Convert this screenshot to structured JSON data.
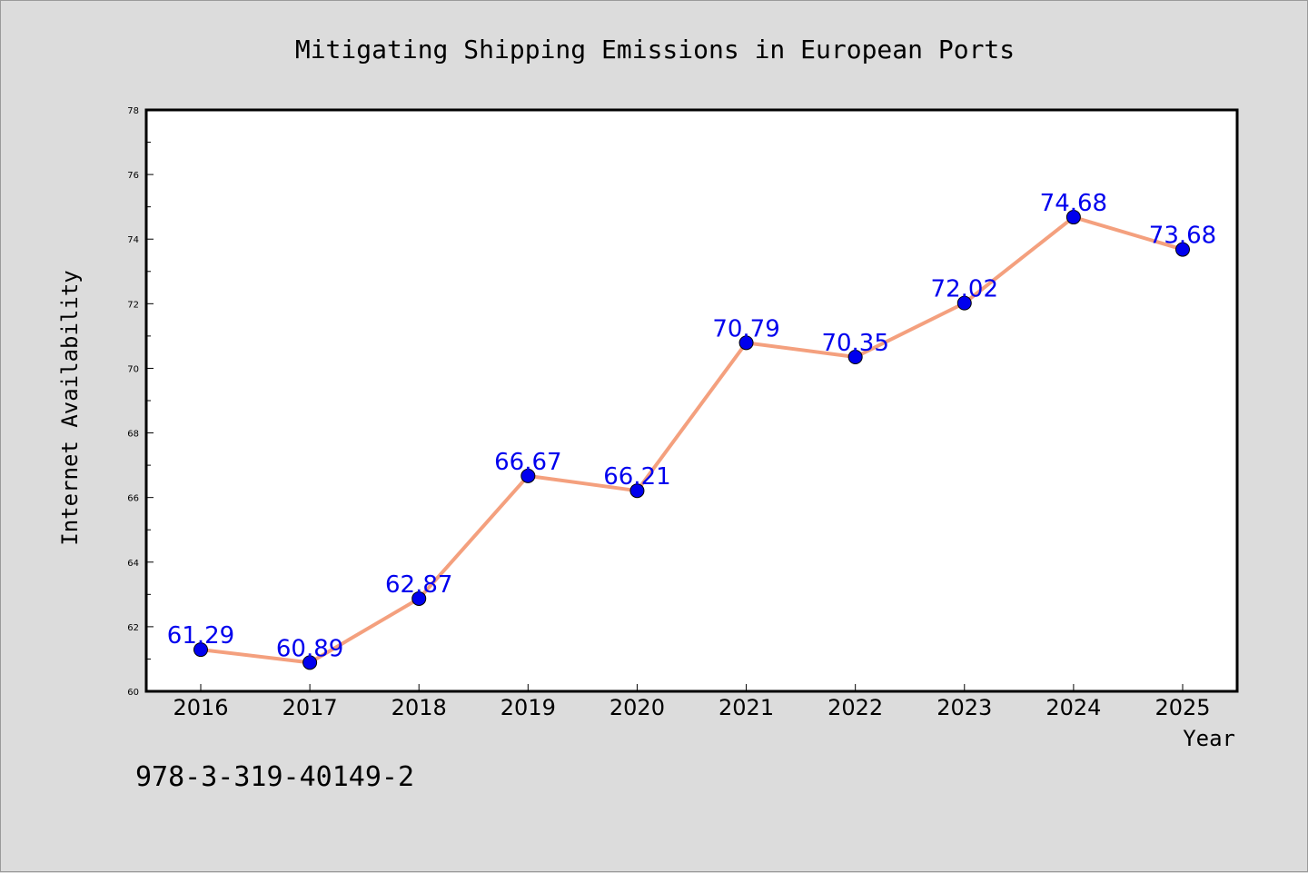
{
  "chart_data": {
    "type": "line",
    "title": "Mitigating Shipping Emissions in European Ports",
    "xlabel": "Year",
    "ylabel": "Internet Availability",
    "categories": [
      "2016",
      "2017",
      "2018",
      "2019",
      "2020",
      "2021",
      "2022",
      "2023",
      "2024",
      "2025"
    ],
    "series": [
      {
        "values": [
          61.29,
          60.89,
          62.87,
          66.67,
          66.21,
          70.79,
          70.35,
          72.02,
          74.68,
          73.68
        ]
      }
    ],
    "data_labels": [
      "61.29",
      "60.89",
      "62.87",
      "66.67",
      "66.21",
      "70.79",
      "70.35",
      "72.02",
      "74.68",
      "73.68"
    ],
    "ylim": [
      60,
      78
    ],
    "yticks": [
      "60",
      "62",
      "64",
      "66",
      "68",
      "70",
      "72",
      "74",
      "76",
      "78"
    ],
    "grid": false,
    "line_color": "#f4a07e",
    "marker_color": "#0000ee",
    "label_color": "#0000ee",
    "annotation": "978-3-319-40149-2"
  }
}
